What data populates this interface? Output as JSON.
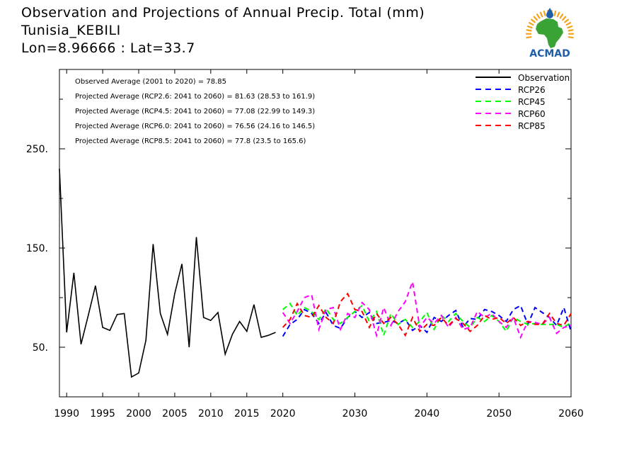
{
  "title": {
    "line1": "Observation and Projections of Annual Precip. Total (mm)",
    "line2": "Tunisia_KEBILI",
    "line3": "Lon=8.96666 : Lat=33.7"
  },
  "logo": {
    "text": "ACMAD",
    "colors": {
      "africa": "#3aa335",
      "rays": "#f2a31b",
      "text": "#1f5fa8",
      "drop": "#1f5fa8"
    }
  },
  "chart_data": {
    "type": "line",
    "xlim": [
      1989,
      2060
    ],
    "ylim": [
      0,
      330
    ],
    "x_ticks": [
      1990,
      1995,
      2000,
      2005,
      2010,
      2015,
      2020,
      2030,
      2040,
      2050,
      2060
    ],
    "y_ticks_labeled": [
      50,
      150,
      250
    ],
    "y_tick_labels": [
      "50.",
      "150.",
      "250."
    ],
    "y_ticks_minor": [
      100,
      200,
      300
    ],
    "annotations": [
      "Observed Average (2001 to 2020) = 78.85",
      "Projected Average (RCP2.6: 2041 to 2060) = 81.63 (28.53 to 161.9)",
      "Projected Average (RCP4.5: 2041 to 2060) = 77.08 (22.99 to 149.3)",
      "Projected Average (RCP6.0: 2041 to 2060) = 76.56 (24.16 to 146.5)",
      "Projected Average (RCP8.5: 2041 to 2060) = 77.8 (23.5 to 165.6)"
    ],
    "legend_position": "top-right",
    "series": [
      {
        "name": "Observation",
        "color": "#000000",
        "dash": "solid",
        "x": [
          1989,
          1990,
          1991,
          1992,
          1993,
          1994,
          1995,
          1996,
          1997,
          1998,
          1999,
          2000,
          2001,
          2002,
          2003,
          2004,
          2005,
          2006,
          2007,
          2008,
          2009,
          2010,
          2011,
          2012,
          2013,
          2014,
          2015,
          2016,
          2017,
          2018,
          2019
        ],
        "values": [
          230,
          65,
          125,
          53,
          82,
          112,
          70,
          67,
          83,
          84,
          20,
          24,
          57,
          154,
          84,
          63,
          104,
          134,
          50,
          161,
          80,
          77,
          85,
          43,
          63,
          76,
          66,
          93,
          60,
          62,
          65
        ]
      },
      {
        "name": "RCP26",
        "color": "#0000ff",
        "dash": "dashed",
        "x": [
          2020,
          2021,
          2022,
          2023,
          2024,
          2025,
          2026,
          2027,
          2028,
          2029,
          2030,
          2031,
          2032,
          2033,
          2034,
          2035,
          2036,
          2037,
          2038,
          2039,
          2040,
          2041,
          2042,
          2043,
          2044,
          2045,
          2046,
          2047,
          2048,
          2049,
          2050,
          2051,
          2052,
          2053,
          2054,
          2055,
          2056,
          2057,
          2058,
          2059,
          2060
        ],
        "values": [
          61,
          73,
          78,
          88,
          84,
          74,
          85,
          72,
          69,
          80,
          86,
          80,
          85,
          74,
          75,
          77,
          74,
          78,
          67,
          72,
          65,
          80,
          76,
          82,
          87,
          70,
          79,
          78,
          88,
          86,
          82,
          76,
          88,
          92,
          73,
          90,
          85,
          80,
          72,
          90,
          66
        ]
      },
      {
        "name": "RCP45",
        "color": "#00ff00",
        "dash": "dashed",
        "x": [
          2020,
          2021,
          2022,
          2023,
          2024,
          2025,
          2026,
          2027,
          2028,
          2029,
          2030,
          2031,
          2032,
          2033,
          2034,
          2035,
          2036,
          2037,
          2038,
          2039,
          2040,
          2041,
          2042,
          2043,
          2044,
          2045,
          2046,
          2047,
          2048,
          2049,
          2050,
          2051,
          2052,
          2053,
          2054,
          2055,
          2056,
          2057,
          2058,
          2059,
          2060
        ],
        "values": [
          88,
          94,
          82,
          90,
          86,
          78,
          89,
          78,
          74,
          80,
          86,
          92,
          76,
          86,
          62,
          84,
          73,
          78,
          70,
          76,
          85,
          68,
          82,
          76,
          84,
          76,
          70,
          80,
          76,
          82,
          76,
          66,
          80,
          76,
          73,
          74,
          73,
          73,
          73,
          70,
          75
        ]
      },
      {
        "name": "RCP60",
        "color": "#ff00ff",
        "dash": "dashed",
        "x": [
          2020,
          2021,
          2022,
          2023,
          2024,
          2025,
          2026,
          2027,
          2028,
          2029,
          2030,
          2031,
          2032,
          2033,
          2034,
          2035,
          2036,
          2037,
          2038,
          2039,
          2040,
          2041,
          2042,
          2043,
          2044,
          2045,
          2046,
          2047,
          2048,
          2049,
          2050,
          2051,
          2052,
          2053,
          2054,
          2055,
          2056,
          2057,
          2058,
          2059,
          2060
        ],
        "values": [
          85,
          74,
          86,
          100,
          103,
          68,
          88,
          90,
          68,
          84,
          80,
          95,
          88,
          62,
          90,
          72,
          86,
          96,
          116,
          70,
          80,
          74,
          82,
          70,
          80,
          68,
          70,
          86,
          80,
          84,
          76,
          70,
          80,
          60,
          76,
          75,
          73,
          80,
          64,
          70,
          72
        ]
      },
      {
        "name": "RCP85",
        "color": "#ff0000",
        "dash": "dashed",
        "x": [
          2020,
          2021,
          2022,
          2023,
          2024,
          2025,
          2026,
          2027,
          2028,
          2029,
          2030,
          2031,
          2032,
          2033,
          2034,
          2035,
          2036,
          2037,
          2038,
          2039,
          2040,
          2041,
          2042,
          2043,
          2044,
          2045,
          2046,
          2047,
          2048,
          2049,
          2050,
          2051,
          2052,
          2053,
          2054,
          2055,
          2056,
          2057,
          2058,
          2059,
          2060
        ],
        "values": [
          70,
          78,
          94,
          82,
          80,
          92,
          80,
          74,
          96,
          104,
          88,
          86,
          70,
          84,
          74,
          80,
          73,
          62,
          80,
          66,
          73,
          72,
          80,
          72,
          79,
          74,
          66,
          72,
          82,
          78,
          80,
          74,
          80,
          72,
          76,
          73,
          73,
          84,
          74,
          72,
          84
        ]
      }
    ]
  }
}
